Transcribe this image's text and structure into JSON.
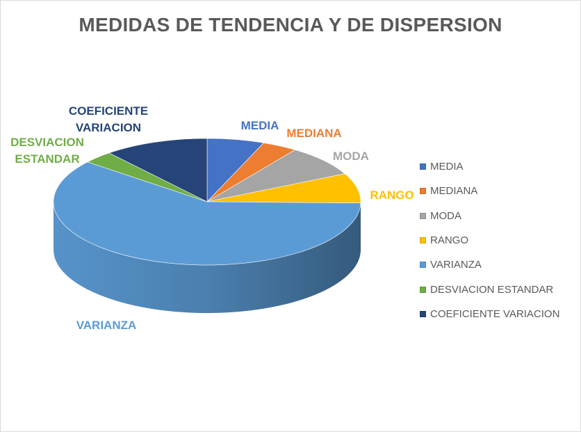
{
  "chart_data": {
    "type": "pie",
    "title": "MEDIDAS DE TENDENCIA Y DE DISPERSION",
    "categories": [
      "MEDIA",
      "MEDIANA",
      "MODA",
      "RANGO",
      "VARIANZA",
      "DESVIACION ESTANDAR",
      "COEFICIENTE VARIACION"
    ],
    "data_labels": [
      "MEDIA",
      "MEDIANA",
      "MODA",
      "RANGO",
      "VARIANZA",
      "DESVIACION\nESTANDAR",
      "COEFICIENTE\nVARIACION"
    ],
    "values": [
      6,
      3.7,
      8,
      7.6,
      60.5,
      3.2,
      11
    ],
    "colors": [
      "#4472C4",
      "#ED7D31",
      "#A5A5A5",
      "#FFC000",
      "#5B9BD5",
      "#70AD47",
      "#264478"
    ],
    "legend_position": "right",
    "grid": false,
    "style": "3d"
  }
}
